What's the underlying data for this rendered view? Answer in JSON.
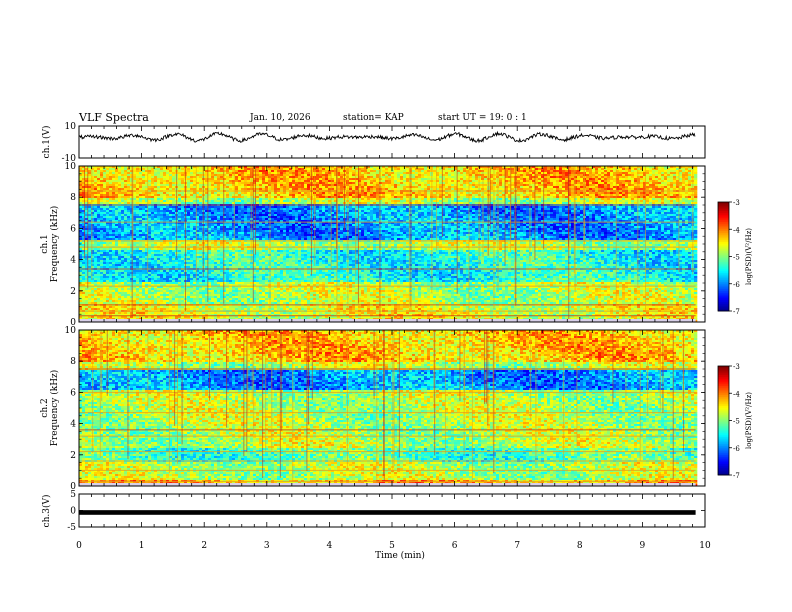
{
  "header": {
    "title": "VLF Spectra",
    "date": "Jan. 10, 2026",
    "station": "station= KAP",
    "start": "start  UT  =   19: 0  : 1"
  },
  "chart_data": [
    {
      "type": "line",
      "id": "ch1-waveform",
      "ylabel": "ch.1(V)",
      "ylim": [
        -10,
        10
      ],
      "ytick_labels": [
        "10",
        "-10"
      ],
      "xlim": [
        0,
        10
      ],
      "x_extent": [
        0,
        9.85
      ],
      "description_series": "noisy waveform around +3 V"
    },
    {
      "type": "heatmap",
      "id": "ch1-spectrogram",
      "ylabel": "ch.1 Frequency (kHz)",
      "ylim": [
        0,
        10
      ],
      "ytick_labels": [
        "0",
        "2",
        "4",
        "6",
        "8",
        "10"
      ],
      "xlim": [
        0,
        10
      ],
      "x_extent": [
        0,
        9.85
      ],
      "color_range": [
        -7,
        -3
      ],
      "colorbar_label": "log(PSD)(V²/Hz)",
      "colorbar_ticks": [
        "-3",
        "-4",
        "-5",
        "-6",
        "-7"
      ],
      "bands": [
        {
          "f_range": [
            5.3,
            7.5
          ],
          "level": -5.9
        },
        {
          "f_range": [
            2.6,
            4.6
          ],
          "level": -5.4
        },
        {
          "f_range": [
            8.0,
            10.0
          ],
          "level": -4.3
        },
        {
          "f_range": [
            0.0,
            1.2
          ],
          "level": -4.6
        }
      ],
      "spectral_lines_khz": [
        0.4,
        0.7,
        1.1,
        2.3,
        3.4,
        4.8,
        5.2,
        6.4,
        7.5,
        8.4
      ]
    },
    {
      "type": "heatmap",
      "id": "ch2-spectrogram",
      "ylabel": "ch.2 Frequency (kHz)",
      "ylim": [
        0,
        10
      ],
      "ytick_labels": [
        "0",
        "2",
        "4",
        "6",
        "8",
        "10"
      ],
      "xlim": [
        0,
        10
      ],
      "x_extent": [
        0,
        9.85
      ],
      "color_range": [
        -7,
        -3
      ],
      "colorbar_label": "log(PSD)(V²/Hz)",
      "colorbar_ticks": [
        "-3",
        "-4",
        "-5",
        "-6",
        "-7"
      ],
      "bands": [
        {
          "f_range": [
            6.2,
            7.4
          ],
          "level": -5.9
        },
        {
          "f_range": [
            1.5,
            2.4
          ],
          "level": -5.2
        },
        {
          "f_range": [
            8.0,
            10.0
          ],
          "level": -4.3
        },
        {
          "f_range": [
            0.0,
            0.4
          ],
          "level": -4.2
        }
      ],
      "spectral_lines_khz": [
        0.3,
        1.0,
        1.6,
        2.2,
        3.2,
        3.6,
        4.7,
        6.0,
        7.5
      ]
    },
    {
      "type": "line",
      "id": "ch3-waveform",
      "ylabel": "ch.3(V)",
      "ylim": [
        -5,
        5
      ],
      "ytick_labels": [
        "5",
        "0",
        "-5"
      ],
      "xlim": [
        0,
        10
      ],
      "x_extent": [
        0,
        9.85
      ],
      "band": [
        -1.0,
        -0.2
      ],
      "xlabel": "Time  (min)",
      "xtick_labels": [
        "0",
        "1",
        "2",
        "3",
        "4",
        "5",
        "6",
        "7",
        "8",
        "9",
        "10"
      ]
    }
  ],
  "colors": {
    "frame": "#000000",
    "background": "#ffffff"
  }
}
